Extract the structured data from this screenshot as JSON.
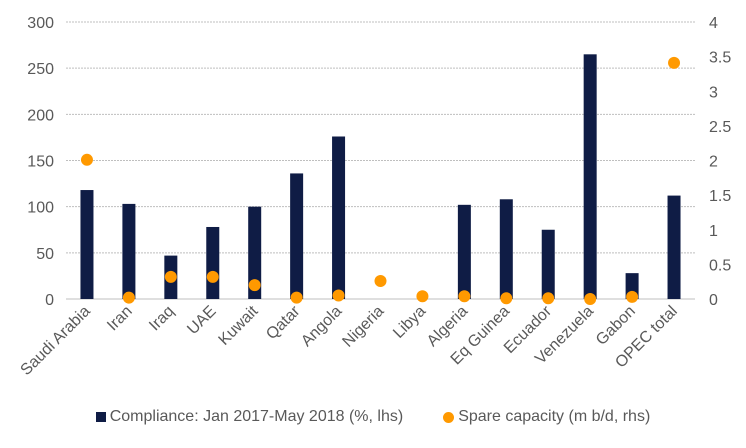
{
  "chart_data": {
    "type": "bar",
    "title": "",
    "categories": [
      "Saudi Arabia",
      "Iran",
      "Iraq",
      "UAE",
      "Kuwait",
      "Qatar",
      "Angola",
      "Nigeria",
      "Libya",
      "Algeria",
      "Eq Guinea",
      "Ecuador",
      "Venezuela",
      "Gabon",
      "OPEC total"
    ],
    "series": [
      {
        "name": "Compliance: Jan 2017-May 2018 (%, lhs)",
        "type": "bar",
        "axis": "left",
        "color": "#0f1c45",
        "values": [
          118,
          103,
          47,
          78,
          100,
          136,
          176,
          null,
          null,
          102,
          108,
          75,
          265,
          28,
          112
        ]
      },
      {
        "name": "Spare capacity (m b/d, rhs)",
        "type": "scatter",
        "axis": "right",
        "color": "#ff9900",
        "values": [
          2.01,
          0.02,
          0.32,
          0.32,
          0.2,
          0.02,
          0.05,
          0.26,
          0.04,
          0.04,
          0.01,
          0.01,
          0.0,
          0.03,
          3.41
        ]
      }
    ],
    "y_left": {
      "ylim": [
        0,
        300
      ],
      "ticks": [
        "0",
        "50",
        "100",
        "150",
        "200",
        "250",
        "300"
      ],
      "tick_values": [
        0,
        50,
        100,
        150,
        200,
        250,
        300
      ]
    },
    "y_right": {
      "ylim": [
        0,
        4
      ],
      "ticks": [
        "0",
        "0.5",
        "1",
        "1.5",
        "2",
        "2.5",
        "3",
        "3.5",
        "4"
      ],
      "tick_values": [
        0,
        0.5,
        1,
        1.5,
        2,
        2.5,
        3,
        3.5,
        4
      ]
    },
    "xlabel": "",
    "ylabel": "",
    "grid": true,
    "legend_position": "bottom"
  },
  "legend": {
    "items": [
      {
        "label": "Compliance: Jan 2017-May 2018 (%, lhs)",
        "color": "#0f1c45"
      },
      {
        "label": "Spare capacity (m b/d, rhs)",
        "color": "#ff9900"
      }
    ]
  }
}
